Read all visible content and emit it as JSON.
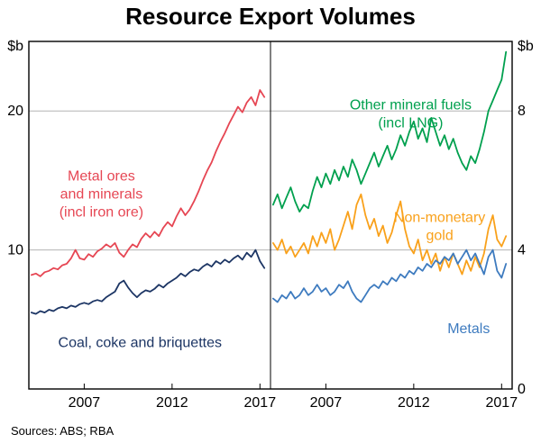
{
  "title": "Resource Export Volumes",
  "sources": "Sources: ABS; RBA",
  "chart_data": {
    "type": "line",
    "title": "Resource Export Volumes",
    "unit": "$b",
    "frequency": "quarterly",
    "x_start": 2004,
    "x_step": 0.25,
    "x_domain": [
      2003.85,
      2017.6
    ],
    "grid": true,
    "panel_divider": true,
    "panels": [
      {
        "side": "left",
        "ylim": [
          0,
          25
        ],
        "yticks": [
          10,
          20
        ],
        "xticks": [
          2007,
          2012,
          2017
        ],
        "series": [
          {
            "name": "Metal ores and minerals (incl iron ore)",
            "color": "#e64653",
            "label_lines": [
              "Metal ores",
              "and minerals",
              "(incl iron ore)"
            ],
            "label_pos": {
              "x": 0.3,
              "y": 0.4
            },
            "values": [
              8.2,
              8.3,
              8.1,
              8.4,
              8.5,
              8.7,
              8.6,
              8.9,
              9.0,
              9.4,
              10.0,
              9.4,
              9.3,
              9.7,
              9.5,
              9.9,
              10.1,
              10.4,
              10.2,
              10.5,
              9.8,
              9.5,
              10.0,
              10.4,
              10.2,
              10.8,
              11.2,
              10.9,
              11.3,
              11.0,
              11.6,
              12.0,
              11.7,
              12.4,
              13.0,
              12.5,
              12.9,
              13.5,
              14.2,
              15.0,
              15.7,
              16.3,
              17.1,
              17.8,
              18.4,
              19.1,
              19.7,
              20.3,
              19.9,
              20.6,
              21.0,
              20.4,
              21.5,
              21.0
            ]
          },
          {
            "name": "Coal, coke and briquettes",
            "color": "#1c3564",
            "label_lines": [
              "Coal, coke and briquettes"
            ],
            "label_pos": {
              "x": 0.46,
              "y": 0.88
            },
            "values": [
              5.5,
              5.4,
              5.6,
              5.5,
              5.7,
              5.6,
              5.8,
              5.9,
              5.8,
              6.0,
              5.9,
              6.1,
              6.2,
              6.1,
              6.3,
              6.4,
              6.3,
              6.6,
              6.8,
              7.0,
              7.6,
              7.8,
              7.3,
              6.9,
              6.6,
              6.9,
              7.1,
              7.0,
              7.2,
              7.5,
              7.3,
              7.6,
              7.8,
              8.0,
              8.3,
              8.1,
              8.4,
              8.6,
              8.5,
              8.8,
              9.0,
              8.8,
              9.2,
              9.0,
              9.3,
              9.1,
              9.4,
              9.6,
              9.3,
              9.8,
              9.5,
              10.0,
              9.2,
              8.7
            ]
          }
        ]
      },
      {
        "side": "right",
        "ylim": [
          0,
          10
        ],
        "yticks": [
          0,
          4,
          8
        ],
        "xticks": [
          2007,
          2012,
          2017
        ],
        "series": [
          {
            "name": "Other mineral fuels (incl LNG)",
            "color": "#00a04e",
            "label_lines": [
              "Other mineral fuels",
              "(incl LNG)"
            ],
            "label_pos": {
              "x": 0.58,
              "y": 0.195
            },
            "values": [
              5.3,
              5.6,
              5.2,
              5.5,
              5.8,
              5.4,
              5.1,
              5.3,
              5.2,
              5.7,
              6.1,
              5.8,
              6.2,
              5.9,
              6.3,
              6.0,
              6.4,
              6.1,
              6.6,
              6.3,
              5.9,
              6.2,
              6.5,
              6.8,
              6.4,
              6.7,
              7.0,
              6.6,
              6.9,
              7.3,
              7.0,
              7.4,
              7.7,
              7.2,
              7.5,
              7.1,
              7.8,
              7.4,
              7.0,
              7.3,
              6.9,
              7.2,
              6.8,
              6.5,
              6.3,
              6.7,
              6.5,
              6.9,
              7.4,
              8.0,
              8.3,
              8.6,
              8.9,
              9.7
            ]
          },
          {
            "name": "Non-monetary gold",
            "color": "#f9a11b",
            "label_lines": [
              "Non-monetary",
              "gold"
            ],
            "label_pos": {
              "x": 0.7,
              "y": 0.52
            },
            "values": [
              4.2,
              4.0,
              4.3,
              3.9,
              4.1,
              3.8,
              4.0,
              4.2,
              3.9,
              4.4,
              4.1,
              4.5,
              4.2,
              4.6,
              4.0,
              4.3,
              4.7,
              5.1,
              4.6,
              5.3,
              5.6,
              5.0,
              4.6,
              4.9,
              4.4,
              4.7,
              4.2,
              4.5,
              5.0,
              5.4,
              4.6,
              4.1,
              3.9,
              4.3,
              3.7,
              4.0,
              3.6,
              3.9,
              3.4,
              3.8,
              3.5,
              3.9,
              3.6,
              3.3,
              3.7,
              3.4,
              3.8,
              3.5,
              3.9,
              4.6,
              5.0,
              4.3,
              4.1,
              4.4
            ]
          },
          {
            "name": "Metals",
            "color": "#3e7bbf",
            "label_lines": [
              "Metals"
            ],
            "label_pos": {
              "x": 0.82,
              "y": 0.84
            },
            "values": [
              2.6,
              2.5,
              2.7,
              2.6,
              2.8,
              2.6,
              2.7,
              2.9,
              2.7,
              2.8,
              3.0,
              2.8,
              2.9,
              2.7,
              2.8,
              3.0,
              2.9,
              3.1,
              2.8,
              2.6,
              2.5,
              2.7,
              2.9,
              3.0,
              2.9,
              3.1,
              3.0,
              3.2,
              3.1,
              3.3,
              3.2,
              3.4,
              3.3,
              3.5,
              3.4,
              3.6,
              3.5,
              3.7,
              3.6,
              3.8,
              3.7,
              3.9,
              3.6,
              3.8,
              4.0,
              3.7,
              3.9,
              3.6,
              3.3,
              3.8,
              4.0,
              3.4,
              3.2,
              3.6
            ]
          }
        ]
      }
    ]
  }
}
